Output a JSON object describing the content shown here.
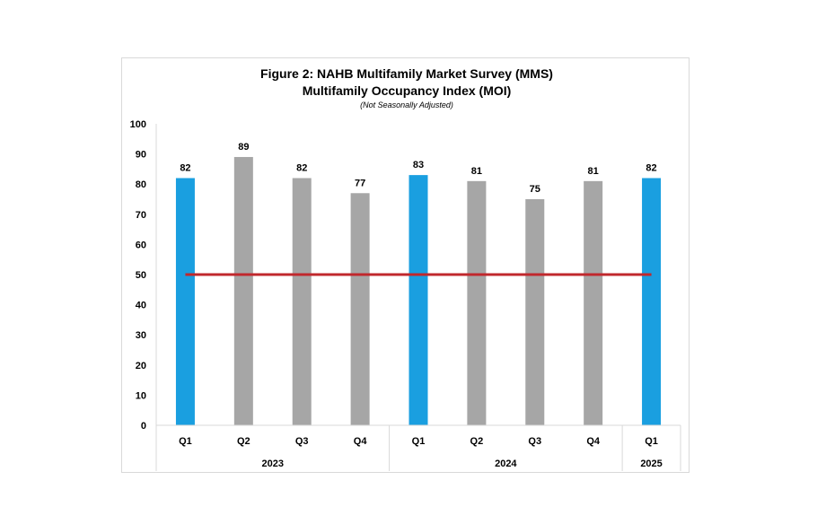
{
  "chart_data": {
    "type": "bar",
    "title_line1": "Figure 2: NAHB Multifamily Market Survey (MMS)",
    "title_line2": "Multifamily Occupancy Index (MOI)",
    "subtitle": "(Not Seasonally Adjusted)",
    "xlabel": "",
    "ylabel": "",
    "ylim": [
      0,
      100
    ],
    "yticks": [
      0,
      10,
      20,
      30,
      40,
      50,
      60,
      70,
      80,
      90,
      100
    ],
    "grid": false,
    "categories": [
      "Q1",
      "Q2",
      "Q3",
      "Q4",
      "Q1",
      "Q2",
      "Q3",
      "Q4",
      "Q1"
    ],
    "groups": [
      {
        "label": "2023",
        "start": 0,
        "count": 4
      },
      {
        "label": "2024",
        "start": 4,
        "count": 4
      },
      {
        "label": "2025",
        "start": 8,
        "count": 1
      }
    ],
    "values": [
      82,
      89,
      82,
      77,
      83,
      81,
      75,
      81,
      82
    ],
    "highlight": [
      true,
      false,
      false,
      false,
      true,
      false,
      false,
      false,
      true
    ],
    "reference_line": 50,
    "colors": {
      "highlight_bar": "#1a9fe0",
      "bar": "#a6a6a6",
      "reference_line": "#c0282d",
      "axis": "#d9d9d9"
    }
  }
}
